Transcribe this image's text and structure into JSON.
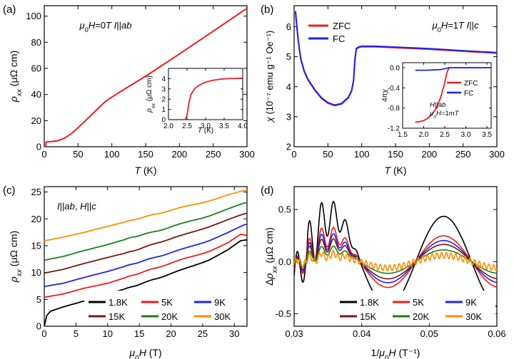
{
  "chart_data": [
    {
      "id": "a",
      "panel_label": "(a)",
      "type": "line",
      "annotation": "μ0H=0T I||ab",
      "xlabel": "T (K)",
      "ylabel": "ρxx (μΩ cm)",
      "xlim": [
        0,
        300
      ],
      "ylim": [
        0,
        108
      ],
      "xticks": [
        0,
        50,
        100,
        150,
        200,
        250,
        300
      ],
      "yticks": [
        0,
        20,
        40,
        60,
        80,
        100
      ],
      "series": [
        {
          "color": "#ee1c1c",
          "x": [
            0,
            2.4,
            2.6,
            5,
            10,
            20,
            30,
            40,
            50,
            60,
            70,
            80,
            90,
            100,
            120,
            150,
            200,
            250,
            300
          ],
          "y": [
            0,
            0,
            3.5,
            3.8,
            4.0,
            4.6,
            6.5,
            10,
            14.5,
            19.5,
            24.5,
            29.5,
            34.5,
            38,
            44.5,
            54,
            71,
            88.5,
            106
          ]
        }
      ],
      "inset": {
        "xlabel": "T (K)",
        "ylabel": "ρxx (μΩ cm)",
        "xlim": [
          2.0,
          4.0
        ],
        "ylim": [
          0,
          5
        ],
        "xticks": [
          2.0,
          2.5,
          3.0,
          3.5,
          4.0
        ],
        "yticks": [
          0,
          1,
          2,
          3,
          4
        ],
        "series": [
          {
            "color": "#ee1c1c",
            "x": [
              2.0,
              2.45,
              2.5,
              2.55,
              2.6,
              2.7,
              2.8,
              2.9,
              3.0,
              3.2,
              3.4,
              3.6,
              3.8,
              4.0
            ],
            "y": [
              0,
              0,
              0.4,
              1.6,
              2.4,
              3.0,
              3.3,
              3.5,
              3.65,
              3.85,
              3.95,
              4.0,
              4.02,
              4.05
            ]
          }
        ]
      }
    },
    {
      "id": "b",
      "panel_label": "(b)",
      "type": "line",
      "annotation": "μ0H=1T I||c",
      "xlabel": "T (K)",
      "ylabel": "χ (10⁻⁷ emu g⁻¹ Oe⁻¹)",
      "xlim": [
        0,
        300
      ],
      "ylim": [
        2,
        6.7
      ],
      "xticks": [
        0,
        50,
        100,
        150,
        200,
        250,
        300
      ],
      "yticks": [
        2,
        3,
        4,
        5,
        6
      ],
      "legend_position": "top-left",
      "series": [
        {
          "name": "ZFC",
          "color": "#ee1c1c",
          "x": [
            2,
            4,
            6,
            8,
            10,
            15,
            20,
            30,
            40,
            50,
            60,
            70,
            80,
            85,
            88,
            90,
            92,
            95,
            100,
            120,
            150,
            200,
            250,
            300
          ],
          "y": [
            6.5,
            6.0,
            5.55,
            5.2,
            4.9,
            4.5,
            4.25,
            3.9,
            3.62,
            3.45,
            3.37,
            3.42,
            3.62,
            3.85,
            4.2,
            4.9,
            5.25,
            5.3,
            5.33,
            5.33,
            5.3,
            5.25,
            5.18,
            5.12
          ]
        },
        {
          "name": "FC",
          "color": "#1f24e6",
          "x": [
            2,
            4,
            6,
            8,
            10,
            15,
            20,
            30,
            40,
            50,
            60,
            70,
            80,
            85,
            88,
            90,
            92,
            95,
            100,
            120,
            150,
            200,
            250,
            300
          ],
          "y": [
            6.52,
            6.02,
            5.57,
            5.22,
            4.92,
            4.52,
            4.27,
            3.92,
            3.64,
            3.47,
            3.39,
            3.44,
            3.64,
            3.87,
            4.22,
            4.92,
            5.27,
            5.32,
            5.35,
            5.35,
            5.32,
            5.27,
            5.2,
            5.14
          ]
        }
      ],
      "inset": {
        "ylabel": "4πχ",
        "xlim": [
          1.5,
          3.6
        ],
        "ylim": [
          -1.2,
          0.1
        ],
        "xticks": [
          1.5,
          2.0,
          2.5,
          3.0,
          3.5
        ],
        "yticks": [
          0.0,
          -0.4,
          -0.8,
          -1.2
        ],
        "annotation": "H||ab μ0H=1mT",
        "series": [
          {
            "name": "ZFC",
            "color": "#ee1c1c",
            "x": [
              1.8,
              1.9,
              2.0,
              2.1,
              2.2,
              2.3,
              2.4,
              2.5,
              2.55,
              2.6,
              3.0,
              3.6
            ],
            "y": [
              -1.08,
              -1.07,
              -1.05,
              -1.0,
              -0.92,
              -0.8,
              -0.6,
              -0.3,
              -0.1,
              0.0,
              0.0,
              0.0
            ]
          },
          {
            "name": "FC",
            "color": "#1f24e6",
            "x": [
              1.8,
              2.0,
              2.2,
              2.4,
              2.5,
              2.55,
              2.6,
              3.0,
              3.6
            ],
            "y": [
              -0.05,
              -0.05,
              -0.045,
              -0.035,
              -0.02,
              -0.01,
              0.0,
              0.0,
              0.0
            ]
          }
        ]
      }
    },
    {
      "id": "c",
      "panel_label": "(c)",
      "type": "line",
      "annotation": "I||ab, H||c",
      "xlabel": "μ0H (T)",
      "ylabel": "ρxx (μΩ cm)",
      "xlim": [
        0,
        32
      ],
      "ylim": [
        0,
        26
      ],
      "xticks": [
        0,
        5,
        10,
        15,
        20,
        25,
        30
      ],
      "yticks": [
        0,
        5,
        10,
        15,
        20,
        25
      ],
      "legend_position": "bottom-right",
      "series": [
        {
          "name": "1.8K",
          "color": "#000000",
          "x": [
            0,
            0.4,
            1,
            3,
            6,
            10,
            14,
            18,
            22,
            26,
            29,
            31,
            32
          ],
          "y": [
            0,
            2.0,
            2.8,
            3.6,
            4.6,
            6.0,
            7.4,
            9.0,
            10.6,
            12.4,
            14.2,
            15.8,
            16.0
          ]
        },
        {
          "name": "5K",
          "color": "#ee1c1c",
          "x": [
            0,
            3,
            6,
            10,
            14,
            18,
            22,
            26,
            29,
            31,
            32
          ],
          "y": [
            5.4,
            6.0,
            7.0,
            8.0,
            9.5,
            11.0,
            12.5,
            14.0,
            15.5,
            17.0,
            16.8
          ]
        },
        {
          "name": "9K",
          "color": "#1f24e6",
          "x": [
            0,
            3,
            6,
            10,
            14,
            18,
            22,
            26,
            29,
            32
          ],
          "y": [
            7.4,
            8.0,
            9.0,
            10.2,
            11.6,
            13.0,
            14.4,
            16.0,
            17.4,
            19.0
          ]
        },
        {
          "name": "15K",
          "color": "#7b1414",
          "x": [
            0,
            3,
            6,
            10,
            14,
            18,
            22,
            26,
            29,
            32
          ],
          "y": [
            9.9,
            10.6,
            11.6,
            12.8,
            14.0,
            15.6,
            17.0,
            18.6,
            19.8,
            21.0
          ]
        },
        {
          "name": "20K",
          "color": "#1a7f1a",
          "x": [
            0,
            3,
            6,
            10,
            14,
            18,
            22,
            26,
            29,
            32
          ],
          "y": [
            12.3,
            13.0,
            14.0,
            15.2,
            16.6,
            17.8,
            19.2,
            20.6,
            21.8,
            23.0
          ]
        },
        {
          "name": "30K",
          "color": "#ff8c00",
          "x": [
            0,
            3,
            6,
            10,
            14,
            18,
            22,
            26,
            29,
            32
          ],
          "y": [
            15.9,
            16.6,
            17.4,
            18.6,
            19.8,
            21.0,
            22.2,
            23.4,
            24.4,
            25.3
          ]
        }
      ]
    },
    {
      "id": "d",
      "panel_label": "(d)",
      "type": "line",
      "xlabel": "1/μ0H (T⁻¹)",
      "ylabel": "Δρxx (μΩ cm)",
      "xlim": [
        0.03,
        0.06
      ],
      "ylim": [
        -0.62,
        0.72
      ],
      "xticks": [
        0.03,
        0.04,
        0.05,
        0.06
      ],
      "yticks": [
        -0.5,
        0.0,
        0.5
      ],
      "legend_position": "bottom-right",
      "series": [
        {
          "name": "1.8K",
          "color": "#000000",
          "amplitude": 0.58
        },
        {
          "name": "5K",
          "color": "#ee1c1c",
          "amplitude": 0.33
        },
        {
          "name": "9K",
          "color": "#1f24e6",
          "amplitude": 0.27
        },
        {
          "name": "15K",
          "color": "#7b1414",
          "amplitude": 0.22
        },
        {
          "name": "20K",
          "color": "#1a7f1a",
          "amplitude": 0.15
        },
        {
          "name": "30K",
          "color": "#ff8c00",
          "amplitude": 0.08
        }
      ]
    }
  ]
}
